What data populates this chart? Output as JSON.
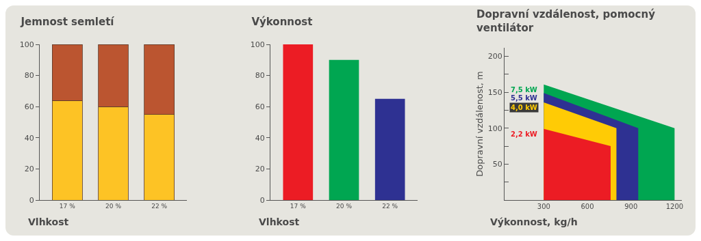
{
  "chart_data": [
    {
      "type": "bar",
      "title": "Jemnost semletí",
      "xlabel": "Vlhkost",
      "categories": [
        "17 %",
        "20 %",
        "22 %"
      ],
      "stacked": true,
      "ylim": [
        0,
        100
      ],
      "yticks": [
        0,
        20,
        40,
        60,
        80,
        100
      ],
      "series": [
        {
          "color": "#fdc325",
          "values": [
            64,
            60,
            55
          ]
        },
        {
          "color": "#bb5530",
          "values": [
            36,
            40,
            45
          ]
        }
      ]
    },
    {
      "type": "bar",
      "title": "Výkonnost",
      "xlabel": "Vlhkost",
      "categories": [
        "17 %",
        "20 %",
        "22 %"
      ],
      "values": [
        100,
        90,
        65
      ],
      "colors": [
        "#ec1c24",
        "#00a651",
        "#2e3192"
      ],
      "ylim": [
        0,
        100
      ],
      "yticks": [
        0,
        20,
        40,
        60,
        80,
        100
      ]
    },
    {
      "type": "area",
      "title": "Dopravní vzdálenost, pomocný ventilátor",
      "xlabel": "Výkonnost, kg/h",
      "ylabel": "Dopravní vzdálenost, m",
      "xlim": [
        30,
        1250
      ],
      "xticks": [
        300,
        600,
        900,
        1200
      ],
      "ylim": [
        0,
        212
      ],
      "yticks": [
        {
          "value": 25,
          "label": null
        },
        50,
        {
          "value": 75,
          "label": null
        },
        100,
        {
          "value": 125,
          "label": null
        },
        150,
        {
          "value": 175,
          "label": null
        },
        200
      ],
      "series": [
        {
          "name": "7,5 kW",
          "color": "#00a651",
          "x": [
            300,
            1200
          ],
          "values": [
            161,
            100
          ]
        },
        {
          "name": "5,5 kW",
          "color": "#2e3192",
          "x": [
            300,
            950
          ],
          "values": [
            149,
            100
          ]
        },
        {
          "name": "4,0 kW",
          "color": "#ffcb05",
          "x": [
            300,
            800
          ],
          "values": [
            136,
            100
          ]
        },
        {
          "name": "2,2 kW",
          "color": "#ec1c24",
          "x": [
            300,
            760
          ],
          "values": [
            99,
            75
          ]
        }
      ]
    }
  ]
}
